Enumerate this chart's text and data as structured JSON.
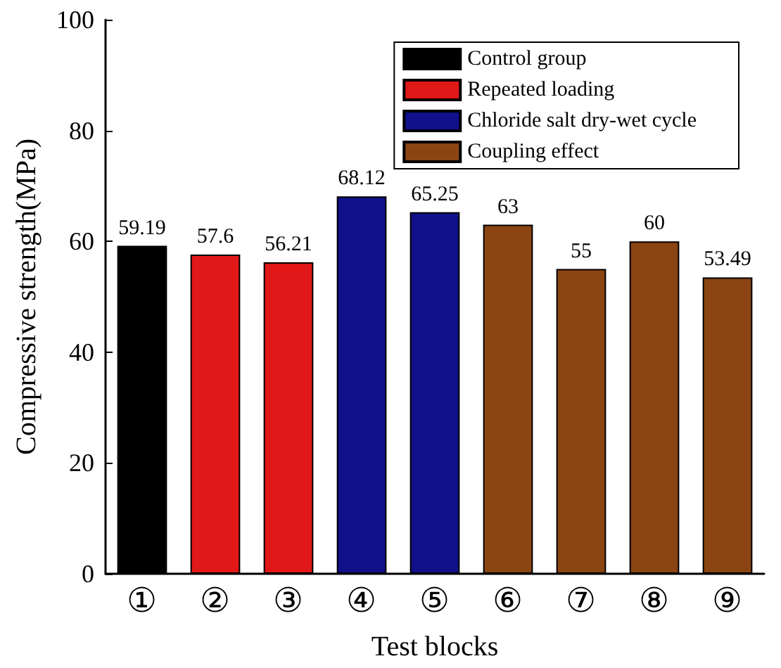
{
  "chart_data": {
    "type": "bar",
    "xlabel": "Test blocks",
    "ylabel": "Compressive strength(MPa)",
    "categories": [
      "①",
      "②",
      "③",
      "④",
      "⑤",
      "⑥",
      "⑦",
      "⑧",
      "⑨"
    ],
    "series": [
      {
        "name": "Control group",
        "color": "#000000",
        "values": [
          59.19,
          null,
          null,
          null,
          null,
          null,
          null,
          null,
          null
        ]
      },
      {
        "name": "Repeated loading",
        "color": "#e01818",
        "values": [
          null,
          57.6,
          56.21,
          null,
          null,
          null,
          null,
          null,
          null
        ]
      },
      {
        "name": "Chloride salt dry-wet cycle",
        "color": "#10108a",
        "values": [
          null,
          null,
          null,
          68.12,
          65.25,
          null,
          null,
          null,
          null
        ]
      },
      {
        "name": "Coupling effect",
        "color": "#8b4513",
        "values": [
          null,
          null,
          null,
          null,
          null,
          63,
          55,
          60,
          53.49
        ]
      }
    ],
    "ylim": [
      0,
      100
    ],
    "yticks": [
      0,
      20,
      40,
      60,
      80,
      100
    ],
    "grid": false,
    "legend": "top right",
    "data_labels": true
  }
}
